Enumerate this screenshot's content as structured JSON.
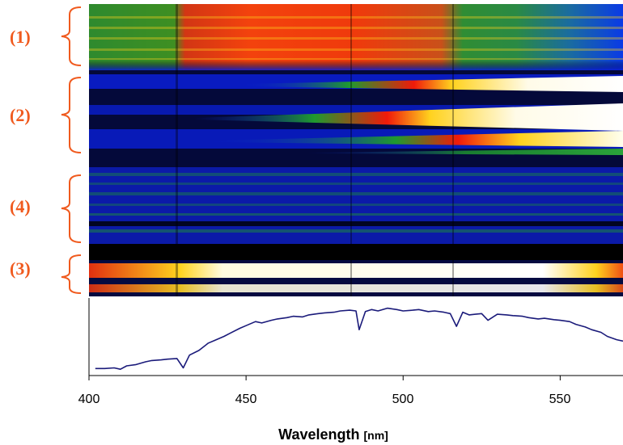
{
  "chart_data": {
    "type": "line",
    "xlabel": "Wavelength",
    "xlabel_unit": "[nm]",
    "xlim": [
      400,
      570
    ],
    "x_ticks": [
      "400",
      "450",
      "500",
      "550"
    ],
    "grid": false,
    "image_panel": {
      "type": "heatmap",
      "colormap": [
        "#000000",
        "#0a1fd8",
        "#1f9a2e",
        "#f01a0a",
        "#ffd21e",
        "#ffffee"
      ],
      "groups": [
        {
          "label": "(1)",
          "rows": "top"
        },
        {
          "label": "(2)",
          "rows": "upper-middle"
        },
        {
          "label": "(4)",
          "rows": "lower-middle"
        },
        {
          "label": "(3)",
          "rows": "bottom"
        }
      ]
    },
    "series": [
      {
        "color": "#1a1a7a",
        "x": [
          402,
          405,
          408,
          410,
          412,
          415,
          418,
          420,
          423,
          425,
          428,
          430,
          432,
          435,
          438,
          440,
          443,
          445,
          448,
          450,
          453,
          455,
          458,
          460,
          463,
          465,
          468,
          470,
          473,
          475,
          478,
          480,
          483,
          485,
          486,
          488,
          490,
          492,
          495,
          498,
          500,
          503,
          505,
          508,
          510,
          513,
          515,
          517,
          519,
          521,
          523,
          525,
          527,
          530,
          533,
          535,
          538,
          540,
          543,
          545,
          548,
          550,
          553,
          555,
          558,
          560,
          563,
          565,
          568,
          570
        ],
        "y": [
          0.02,
          0.02,
          0.03,
          0.01,
          0.06,
          0.08,
          0.12,
          0.14,
          0.15,
          0.16,
          0.17,
          0.03,
          0.22,
          0.29,
          0.4,
          0.44,
          0.5,
          0.55,
          0.62,
          0.66,
          0.72,
          0.7,
          0.74,
          0.76,
          0.78,
          0.8,
          0.79,
          0.82,
          0.84,
          0.85,
          0.86,
          0.88,
          0.89,
          0.88,
          0.6,
          0.87,
          0.9,
          0.88,
          0.92,
          0.9,
          0.88,
          0.89,
          0.9,
          0.87,
          0.88,
          0.86,
          0.84,
          0.65,
          0.86,
          0.82,
          0.83,
          0.84,
          0.74,
          0.83,
          0.82,
          0.81,
          0.8,
          0.78,
          0.76,
          0.77,
          0.75,
          0.74,
          0.72,
          0.68,
          0.64,
          0.6,
          0.56,
          0.5,
          0.45,
          0.43
        ]
      }
    ]
  }
}
